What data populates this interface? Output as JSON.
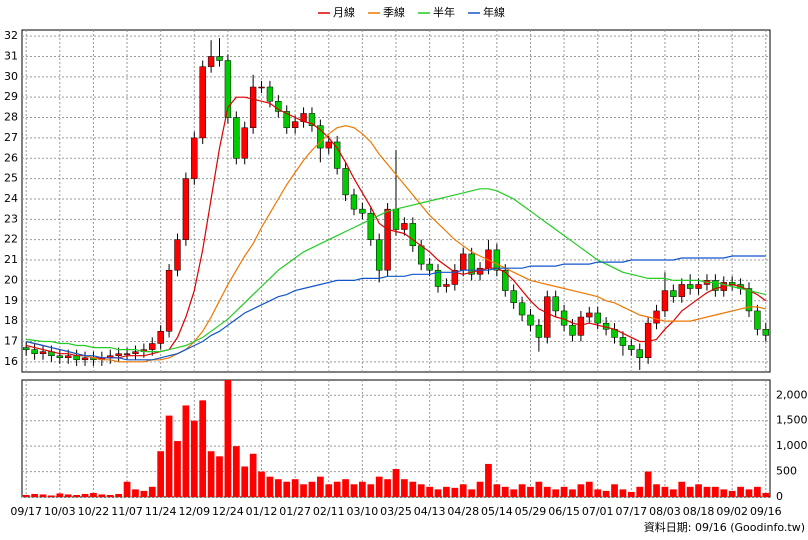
{
  "chart_data": [
    {
      "type": "candlestick",
      "x": [
        "09/17",
        null,
        null,
        null,
        "10/03",
        null,
        null,
        null,
        "10/22",
        null,
        null,
        null,
        "11/07",
        null,
        null,
        null,
        "11/24",
        null,
        null,
        null,
        "12/09",
        null,
        null,
        null,
        "12/24",
        null,
        null,
        null,
        "01/12",
        null,
        null,
        null,
        "01/27",
        null,
        null,
        null,
        "02/11",
        null,
        null,
        null,
        "03/10",
        null,
        null,
        null,
        "03/25",
        null,
        null,
        null,
        "04/13",
        null,
        null,
        null,
        "04/28",
        null,
        null,
        null,
        "05/14",
        null,
        null,
        null,
        "05/29",
        null,
        null,
        null,
        "06/15",
        null,
        null,
        null,
        "07/01",
        null,
        null,
        null,
        "07/17",
        null,
        null,
        null,
        "08/03",
        null,
        null,
        null,
        "08/18",
        null,
        null,
        null,
        "09/02",
        null,
        null,
        null,
        "09/16"
      ],
      "open": [
        16.7,
        16.6,
        16.4,
        16.5,
        16.3,
        16.2,
        16.3,
        16.1,
        16.2,
        16.1,
        16.2,
        16.3,
        16.4,
        16.4,
        16.5,
        16.6,
        16.9,
        17.5,
        20.5,
        22,
        25,
        27,
        30.5,
        31,
        30.8,
        28,
        26,
        27.5,
        29.5,
        29.5,
        28.8,
        28.3,
        27.5,
        27.8,
        28.2,
        27.6,
        26.5,
        26.8,
        25.5,
        24.2,
        23.5,
        23.3,
        22,
        20.5,
        23.5,
        22.5,
        22.8,
        21.7,
        20.8,
        20.5,
        19.7,
        19.8,
        20.5,
        21.3,
        20.3,
        20.6,
        21.5,
        20.5,
        19.5,
        18.9,
        18.3,
        17.8,
        17.2,
        19.2,
        18.5,
        17.8,
        17.3,
        18.2,
        18.4,
        17.9,
        17.6,
        17.2,
        16.8,
        16.6,
        16.2,
        17.9,
        18.5,
        19.5,
        19.2,
        19.8,
        19.6,
        19.8,
        20,
        19.5,
        19.9,
        19.8,
        19.6,
        18.5,
        17.6
      ],
      "high": [
        17.0,
        16.9,
        16.8,
        16.8,
        16.6,
        16.6,
        16.6,
        16.5,
        16.5,
        16.5,
        16.6,
        16.7,
        16.7,
        16.8,
        16.9,
        17.2,
        17.8,
        20.8,
        22.3,
        25.3,
        27.3,
        30.8,
        31.8,
        31.9,
        31.1,
        28.3,
        27.8,
        30.1,
        29.8,
        29.8,
        29.1,
        28.6,
        28.1,
        28.5,
        28.5,
        27.9,
        27.1,
        27.1,
        25.8,
        24.5,
        23.8,
        23.6,
        22.3,
        23.8,
        26.4,
        23.1,
        23.1,
        22.0,
        21.1,
        20.8,
        20.1,
        20.8,
        21.6,
        21.6,
        20.9,
        22.0,
        21.8,
        20.8,
        19.8,
        19.2,
        18.6,
        18.1,
        19.5,
        19.5,
        18.8,
        18.1,
        18.5,
        18.7,
        18.7,
        18.2,
        17.9,
        17.5,
        17.1,
        16.9,
        18.2,
        18.8,
        20.4,
        19.8,
        20.1,
        20.3,
        20.1,
        20.3,
        20.3,
        20.2,
        20.2,
        20.1,
        19.9,
        18.8,
        17.9
      ],
      "low": [
        16.3,
        16.1,
        16.1,
        16.0,
        15.9,
        15.9,
        15.8,
        15.8,
        15.8,
        15.8,
        15.9,
        16.0,
        16.1,
        16.1,
        16.2,
        16.3,
        16.6,
        17.2,
        20.2,
        21.7,
        24.7,
        26.7,
        30.2,
        30.5,
        27.7,
        25.7,
        25.7,
        27.2,
        29.2,
        28.5,
        28.0,
        27.2,
        27.2,
        27.5,
        27.3,
        25.8,
        26.2,
        25.2,
        23.9,
        23.2,
        23.0,
        21.7,
        19.9,
        20.2,
        22.2,
        22.2,
        21.4,
        20.5,
        20.2,
        19.4,
        19.4,
        19.5,
        20.2,
        20.0,
        20.0,
        20.3,
        20.2,
        19.2,
        18.6,
        18.0,
        17.5,
        16.5,
        16.9,
        18.2,
        17.5,
        17.0,
        17.0,
        17.9,
        17.6,
        17.3,
        16.9,
        16.3,
        16.3,
        15.6,
        15.9,
        17.6,
        18.2,
        18.9,
        18.9,
        19.3,
        19.3,
        19.5,
        19.2,
        19.2,
        19.5,
        19.3,
        18.2,
        17.3,
        17.0
      ],
      "close": [
        16.6,
        16.4,
        16.5,
        16.3,
        16.2,
        16.3,
        16.1,
        16.2,
        16.1,
        16.2,
        16.3,
        16.4,
        16.4,
        16.5,
        16.6,
        16.9,
        17.5,
        20.5,
        22,
        25,
        27,
        30.5,
        31,
        30.8,
        28,
        26,
        27.5,
        29.5,
        29.5,
        28.8,
        28.3,
        27.5,
        27.8,
        28.2,
        27.6,
        26.5,
        26.8,
        25.5,
        24.2,
        23.5,
        23.3,
        22,
        20.5,
        23.5,
        22.5,
        22.8,
        21.7,
        20.8,
        20.5,
        19.7,
        19.8,
        20.5,
        21.3,
        20.3,
        20.6,
        21.5,
        20.5,
        19.5,
        18.9,
        18.3,
        17.8,
        17.2,
        19.2,
        18.5,
        17.8,
        17.3,
        18.2,
        18.4,
        17.9,
        17.6,
        17.2,
        16.8,
        16.6,
        16.2,
        17.9,
        18.5,
        19.5,
        19.2,
        19.8,
        19.6,
        19.8,
        20,
        19.5,
        19.9,
        19.8,
        19.6,
        18.5,
        17.6,
        17.3
      ],
      "up_color": "#ff0000",
      "down_color": "#00cc00",
      "series": [
        {
          "name": "月線",
          "color": "#dd0000",
          "values": [
            16.8,
            16.7,
            16.6,
            16.5,
            16.4,
            16.4,
            16.3,
            16.3,
            16.2,
            16.2,
            16.2,
            16.2,
            16.3,
            16.3,
            16.3,
            16.4,
            16.5,
            16.6,
            17.2,
            18.2,
            19.5,
            21.5,
            24,
            26.5,
            28.5,
            29,
            29,
            28.9,
            28.8,
            28.7,
            28.4,
            28.2,
            28,
            27.8,
            27.7,
            27.4,
            27,
            26.5,
            25.8,
            25,
            24.3,
            23.6,
            22.8,
            22.5,
            22.4,
            22.3,
            22,
            21.7,
            21.4,
            21,
            20.7,
            20.4,
            20.3,
            20.4,
            20.5,
            20.6,
            20.6,
            20.4,
            20,
            19.5,
            19,
            18.6,
            18.4,
            18.2,
            18.1,
            17.9,
            17.8,
            17.9,
            17.8,
            17.7,
            17.6,
            17.4,
            17.2,
            17,
            17,
            17.1,
            17.6,
            18,
            18.5,
            18.8,
            19.1,
            19.4,
            19.6,
            19.7,
            19.8,
            19.7,
            19.5,
            19.3,
            19.0
          ]
        },
        {
          "name": "季線",
          "color": "#ee7700",
          "values": [
            17.0,
            16.9,
            16.8,
            16.7,
            16.6,
            16.5,
            16.4,
            16.3,
            16.2,
            16.1,
            16.1,
            16.0,
            16.0,
            16.0,
            16.0,
            16.1,
            16.1,
            16.2,
            16.4,
            16.6,
            17,
            17.5,
            18.2,
            19,
            19.8,
            20.5,
            21.2,
            21.8,
            22.6,
            23.3,
            24,
            24.7,
            25.3,
            25.9,
            26.4,
            26.8,
            27.2,
            27.5,
            27.6,
            27.5,
            27.2,
            26.8,
            26.2,
            25.7,
            25.2,
            24.7,
            24.2,
            23.7,
            23.2,
            22.8,
            22.4,
            22.0,
            21.7,
            21.4,
            21.2,
            21.0,
            20.8,
            20.6,
            20.4,
            20.2,
            20.0,
            19.9,
            19.8,
            19.7,
            19.6,
            19.5,
            19.4,
            19.3,
            19.2,
            19.0,
            18.9,
            18.7,
            18.5,
            18.3,
            18.2,
            18.1,
            18.0,
            18.0,
            18.0,
            18.0,
            18.1,
            18.2,
            18.3,
            18.4,
            18.5,
            18.6,
            18.7,
            18.7,
            18.6
          ]
        },
        {
          "name": "半年",
          "color": "#22cc22",
          "values": [
            17.1,
            17.05,
            17.0,
            17.0,
            16.9,
            16.9,
            16.8,
            16.8,
            16.7,
            16.7,
            16.7,
            16.6,
            16.6,
            16.6,
            16.5,
            16.5,
            16.5,
            16.6,
            16.7,
            16.8,
            17.0,
            17.2,
            17.5,
            17.8,
            18.1,
            18.5,
            18.9,
            19.3,
            19.7,
            20.1,
            20.5,
            20.8,
            21.1,
            21.4,
            21.6,
            21.8,
            22.0,
            22.2,
            22.4,
            22.6,
            22.8,
            23.0,
            23.2,
            23.4,
            23.5,
            23.6,
            23.7,
            23.8,
            23.9,
            24.0,
            24.1,
            24.2,
            24.3,
            24.4,
            24.5,
            24.5,
            24.4,
            24.2,
            24.0,
            23.7,
            23.4,
            23.1,
            22.8,
            22.5,
            22.2,
            21.9,
            21.6,
            21.3,
            21.0,
            20.8,
            20.6,
            20.4,
            20.3,
            20.2,
            20.1,
            20.1,
            20.1,
            20.0,
            20.0,
            20.0,
            20.0,
            19.9,
            19.9,
            19.8,
            19.7,
            19.6,
            19.5,
            19.4,
            19.3
          ]
        },
        {
          "name": "年線",
          "color": "#1155cc",
          "values": [
            17.0,
            16.9,
            16.8,
            16.7,
            16.6,
            16.5,
            16.4,
            16.3,
            16.3,
            16.2,
            16.2,
            16.2,
            16.1,
            16.1,
            16.1,
            16.1,
            16.2,
            16.3,
            16.4,
            16.6,
            16.8,
            17.0,
            17.3,
            17.5,
            17.8,
            18.1,
            18.4,
            18.6,
            18.8,
            19.0,
            19.2,
            19.3,
            19.5,
            19.6,
            19.7,
            19.8,
            19.9,
            20.0,
            20.0,
            20.0,
            20.1,
            20.1,
            20.1,
            20.2,
            20.2,
            20.2,
            20.3,
            20.3,
            20.3,
            20.4,
            20.4,
            20.4,
            20.5,
            20.5,
            20.5,
            20.5,
            20.6,
            20.6,
            20.6,
            20.6,
            20.7,
            20.7,
            20.7,
            20.7,
            20.8,
            20.8,
            20.8,
            20.8,
            20.9,
            20.9,
            20.9,
            20.9,
            21.0,
            21.0,
            21.0,
            21.0,
            21.0,
            21.0,
            21.1,
            21.1,
            21.1,
            21.1,
            21.1,
            21.1,
            21.2,
            21.2,
            21.2,
            21.2,
            21.2
          ]
        }
      ],
      "ylim": [
        15.5,
        32.3
      ],
      "yticks": [
        16,
        17,
        18,
        19,
        20,
        21,
        22,
        23,
        24,
        25,
        26,
        27,
        28,
        29,
        30,
        31,
        32
      ],
      "grid": true,
      "legend": "top"
    },
    {
      "type": "bar",
      "color": "#ff0000",
      "values": [
        40,
        60,
        50,
        30,
        70,
        50,
        40,
        60,
        80,
        50,
        40,
        60,
        300,
        150,
        120,
        200,
        900,
        1600,
        1100,
        1800,
        1500,
        1900,
        900,
        800,
        2300,
        1000,
        600,
        850,
        500,
        400,
        350,
        300,
        350,
        250,
        300,
        400,
        250,
        300,
        350,
        250,
        300,
        250,
        400,
        350,
        550,
        350,
        300,
        250,
        200,
        150,
        200,
        180,
        250,
        150,
        300,
        650,
        250,
        200,
        150,
        250,
        200,
        300,
        200,
        150,
        200,
        150,
        250,
        300,
        150,
        120,
        250,
        150,
        100,
        200,
        500,
        250,
        200,
        150,
        300,
        200,
        250,
        200,
        200,
        150,
        120,
        200,
        150,
        200,
        80
      ],
      "ylim": [
        0,
        2300
      ],
      "yticks": [
        0,
        500,
        {
          "value": 1000,
          "label": "1,000"
        },
        {
          "value": 1500,
          "label": "1,500"
        },
        {
          "value": 2000,
          "label": "2,000"
        }
      ],
      "grid": true,
      "footnote": "資料日期: 09/16  (Goodinfo.tw)"
    }
  ]
}
